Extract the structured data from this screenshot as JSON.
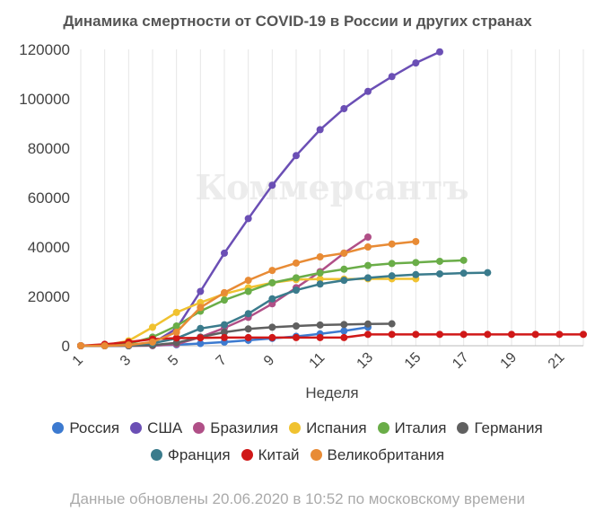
{
  "chart_data": {
    "type": "line",
    "title": "Динамика смертности от COVID-19 в России и других странах",
    "xlabel": "Неделя",
    "ylabel": "",
    "xlim": [
      1,
      22
    ],
    "ylim": [
      0,
      120000
    ],
    "x_ticks": [
      1,
      3,
      5,
      7,
      9,
      11,
      13,
      15,
      17,
      19,
      21
    ],
    "y_ticks": [
      0,
      20000,
      40000,
      60000,
      80000,
      100000,
      120000
    ],
    "grid": "vertical",
    "legend_position": "bottom",
    "series": [
      {
        "name": "Россия",
        "color": "#3c7ad0",
        "x": [
          1,
          2,
          3,
          4,
          5,
          6,
          7,
          8,
          9,
          10,
          11,
          12,
          13
        ],
        "values": [
          0,
          0,
          0,
          100,
          400,
          900,
          1500,
          2200,
          3000,
          3800,
          4800,
          6000,
          7500
        ]
      },
      {
        "name": "США",
        "color": "#6b4fb5",
        "x": [
          1,
          2,
          3,
          4,
          5,
          6,
          7,
          8,
          9,
          10,
          11,
          12,
          13,
          14,
          15,
          16
        ],
        "values": [
          0,
          0,
          200,
          1000,
          7000,
          22000,
          37500,
          51500,
          65000,
          77000,
          87500,
          96000,
          103000,
          109000,
          114500,
          119000
        ]
      },
      {
        "name": "Бразилия",
        "color": "#b04f87",
        "x": [
          1,
          2,
          3,
          4,
          5,
          6,
          7,
          8,
          9,
          10,
          11,
          12,
          13
        ],
        "values": [
          0,
          0,
          0,
          50,
          600,
          3500,
          7200,
          11500,
          17000,
          23500,
          30000,
          37500,
          44000
        ]
      },
      {
        "name": "Испания",
        "color": "#f0c230",
        "x": [
          1,
          2,
          3,
          4,
          5,
          6,
          7,
          8,
          9,
          10,
          11,
          12,
          13,
          14,
          15
        ],
        "values": [
          0,
          100,
          2000,
          7500,
          13500,
          17500,
          21000,
          23500,
          25500,
          26800,
          27000,
          27000,
          27100,
          27100,
          27100
        ]
      },
      {
        "name": "Италия",
        "color": "#6aad48",
        "x": [
          1,
          2,
          3,
          4,
          5,
          6,
          7,
          8,
          9,
          10,
          11,
          12,
          13,
          14,
          15,
          16,
          17
        ],
        "values": [
          0,
          100,
          800,
          3500,
          8000,
          14000,
          18500,
          22000,
          25500,
          27500,
          29500,
          31000,
          32500,
          33300,
          33700,
          34200,
          34600
        ]
      },
      {
        "name": "Германия",
        "color": "#606060",
        "x": [
          1,
          2,
          3,
          4,
          5,
          6,
          7,
          8,
          9,
          10,
          11,
          12,
          13,
          14
        ],
        "values": [
          0,
          0,
          0,
          200,
          1200,
          3500,
          5500,
          6800,
          7500,
          8000,
          8400,
          8600,
          8800,
          8900
        ]
      },
      {
        "name": "Франция",
        "color": "#3a7b8c",
        "x": [
          1,
          2,
          3,
          4,
          5,
          6,
          7,
          8,
          9,
          10,
          11,
          12,
          13,
          14,
          15,
          16,
          17,
          18
        ],
        "values": [
          0,
          0,
          200,
          1000,
          3000,
          7000,
          8500,
          13000,
          19000,
          22500,
          25000,
          26500,
          27500,
          28300,
          28800,
          29100,
          29400,
          29600
        ]
      },
      {
        "name": "Китай",
        "color": "#d01818",
        "x": [
          1,
          2,
          3,
          4,
          5,
          6,
          7,
          8,
          9,
          10,
          11,
          12,
          13,
          14,
          15,
          16,
          17,
          18,
          19,
          20,
          21,
          22
        ],
        "values": [
          0,
          600,
          1500,
          2700,
          3100,
          3200,
          3300,
          3300,
          3300,
          3300,
          3300,
          3300,
          4600,
          4600,
          4600,
          4600,
          4600,
          4600,
          4600,
          4600,
          4600,
          4600
        ]
      },
      {
        "name": "Великобритания",
        "color": "#e88b35",
        "x": [
          1,
          2,
          3,
          4,
          5,
          6,
          7,
          8,
          9,
          10,
          11,
          12,
          13,
          14,
          15
        ],
        "values": [
          0,
          0,
          300,
          1500,
          5500,
          15500,
          21500,
          26500,
          30500,
          33500,
          36000,
          37500,
          40000,
          41200,
          42200
        ]
      }
    ]
  },
  "watermark": "Коммерсантъ",
  "footnote": "Данные обновлены 20.06.2020 в 10:52 по московскому времени"
}
